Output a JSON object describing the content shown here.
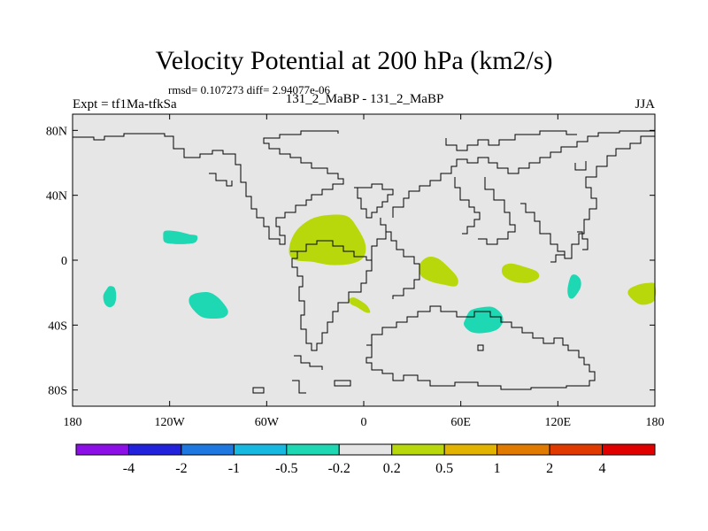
{
  "chart_data": {
    "type": "map-contour",
    "title": "Velocity Potential at 200 hPa (km2/s)",
    "stats": "rmsd= 0.107273 diff= 2.94077e-06",
    "expt": "Expt = tf1Ma-tfkSa",
    "subtitle": "131_2_MaBP - 131_2_MaBP",
    "season": "JJA",
    "xlim": [
      -180,
      180
    ],
    "ylim": [
      -90,
      90
    ],
    "x_ticks": [
      {
        "value": -180,
        "label": "180"
      },
      {
        "value": -120,
        "label": "120W"
      },
      {
        "value": -60,
        "label": "60W"
      },
      {
        "value": 0,
        "label": "0"
      },
      {
        "value": 60,
        "label": "60E"
      },
      {
        "value": 120,
        "label": "120E"
      },
      {
        "value": 180,
        "label": "180"
      }
    ],
    "y_ticks": [
      {
        "value": 80,
        "label": "80N"
      },
      {
        "value": 40,
        "label": "40N"
      },
      {
        "value": 0,
        "label": "0"
      },
      {
        "value": -40,
        "label": "40S"
      },
      {
        "value": -80,
        "label": "80S"
      }
    ],
    "colorbar": {
      "colors": [
        "#8b0fe6",
        "#2222dd",
        "#1e78e0",
        "#18b9e0",
        "#1ed8b4",
        "#e5e5e5",
        "#b8d80c",
        "#e2b300",
        "#e07a00",
        "#e03a00",
        "#e00000"
      ],
      "labels": [
        "-4",
        "-2",
        "-1",
        "-0.5",
        "-0.2",
        "0.2",
        "0.5",
        "1",
        "2",
        "4"
      ]
    },
    "background_color": "#e6e6e6",
    "regions": [
      {
        "name": "central-pacific-low",
        "lon": -115,
        "lat": 13,
        "sign": "negative",
        "points": [
          [
            -124,
            15
          ],
          [
            -123,
            18
          ],
          [
            -117,
            18
          ],
          [
            -112,
            17
          ],
          [
            -108,
            16
          ],
          [
            -103,
            15
          ],
          [
            -104,
            11
          ],
          [
            -110,
            10
          ],
          [
            -117,
            10
          ],
          [
            -123,
            11
          ]
        ]
      },
      {
        "name": "south-pacific-low",
        "lon": -156,
        "lat": -22,
        "sign": "negative",
        "points": [
          [
            -159,
            -18
          ],
          [
            -157,
            -16
          ],
          [
            -154,
            -17
          ],
          [
            -153,
            -22
          ],
          [
            -154,
            -27
          ],
          [
            -157,
            -29
          ],
          [
            -160,
            -27
          ],
          [
            -161,
            -22
          ]
        ]
      },
      {
        "name": "southeast-pacific-low",
        "lon": -96,
        "lat": -29,
        "sign": "negative",
        "points": [
          [
            -107,
            -22
          ],
          [
            -102,
            -20
          ],
          [
            -95,
            -20
          ],
          [
            -89,
            -24
          ],
          [
            -84,
            -31
          ],
          [
            -86,
            -35
          ],
          [
            -93,
            -36
          ],
          [
            -100,
            -35
          ],
          [
            -105,
            -31
          ],
          [
            -108,
            -26
          ]
        ]
      },
      {
        "name": "south-america-high",
        "lon": -22,
        "lat": 12,
        "sign": "positive",
        "points": [
          [
            -45,
            12
          ],
          [
            -40,
            20
          ],
          [
            -31,
            26
          ],
          [
            -20,
            28
          ],
          [
            -10,
            27
          ],
          [
            -4,
            20
          ],
          [
            1,
            10
          ],
          [
            0,
            2
          ],
          [
            -7,
            -2
          ],
          [
            -20,
            -3
          ],
          [
            -32,
            -1
          ],
          [
            -42,
            0
          ],
          [
            -46,
            4
          ]
        ]
      },
      {
        "name": "south-atlantic-high",
        "lon": -3,
        "lat": -28,
        "sign": "positive",
        "points": [
          [
            -9,
            -24
          ],
          [
            -6,
            -23
          ],
          [
            -2,
            -25
          ],
          [
            2,
            -28
          ],
          [
            4,
            -32
          ],
          [
            1,
            -32
          ],
          [
            -4,
            -29
          ],
          [
            -8,
            -27
          ]
        ]
      },
      {
        "name": "africa-east-high",
        "lon": 45,
        "lat": -7,
        "sign": "positive",
        "points": [
          [
            35,
            -2
          ],
          [
            40,
            2
          ],
          [
            46,
            1
          ],
          [
            52,
            -4
          ],
          [
            58,
            -11
          ],
          [
            57,
            -16
          ],
          [
            49,
            -15
          ],
          [
            41,
            -13
          ],
          [
            35,
            -9
          ]
        ]
      },
      {
        "name": "indian-ocean-low",
        "lon": 76,
        "lat": -38,
        "sign": "negative",
        "points": [
          [
            63,
            -36
          ],
          [
            66,
            -31
          ],
          [
            73,
            -29
          ],
          [
            80,
            -29
          ],
          [
            85,
            -33
          ],
          [
            86,
            -38
          ],
          [
            82,
            -43
          ],
          [
            73,
            -45
          ],
          [
            66,
            -44
          ],
          [
            62,
            -40
          ]
        ]
      },
      {
        "name": "east-indian-high",
        "lon": 93,
        "lat": -8,
        "sign": "positive",
        "points": [
          [
            86,
            -4
          ],
          [
            91,
            -2
          ],
          [
            99,
            -4
          ],
          [
            107,
            -7
          ],
          [
            108,
            -11
          ],
          [
            101,
            -14
          ],
          [
            92,
            -13
          ],
          [
            86,
            -9
          ]
        ]
      },
      {
        "name": "australia-low",
        "lon": 131,
        "lat": -16,
        "sign": "negative",
        "points": [
          [
            128,
            -10
          ],
          [
            131,
            -9
          ],
          [
            134,
            -12
          ],
          [
            134,
            -17
          ],
          [
            130,
            -23
          ],
          [
            127,
            -23
          ],
          [
            126,
            -18
          ]
        ]
      },
      {
        "name": "west-pacific-high",
        "lon": 173,
        "lat": -21,
        "sign": "positive",
        "points": [
          [
            164,
            -18
          ],
          [
            170,
            -15
          ],
          [
            176,
            -14
          ],
          [
            180,
            -15
          ],
          [
            180,
            -24
          ],
          [
            176,
            -27
          ],
          [
            170,
            -27
          ],
          [
            164,
            -22
          ]
        ]
      }
    ]
  }
}
